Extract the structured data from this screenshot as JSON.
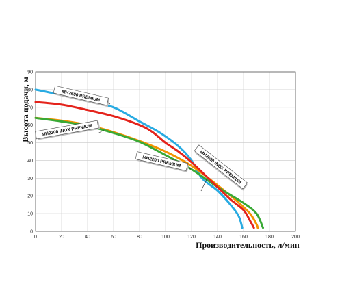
{
  "chart_data": {
    "type": "line",
    "title": "",
    "xlabel": "Производительность, л/мин",
    "ylabel": "Высота подачи, м",
    "xlim": [
      0,
      200
    ],
    "ylim": [
      0,
      90
    ],
    "xticks": [
      0,
      20,
      40,
      60,
      80,
      100,
      120,
      140,
      160,
      180,
      200
    ],
    "yticks": [
      0,
      10,
      20,
      30,
      40,
      50,
      60,
      70,
      80,
      90
    ],
    "grid": true,
    "legend": "none",
    "series": [
      {
        "name": "MH2600 PREMIUM",
        "color": "#29abe2",
        "points": [
          [
            0,
            80
          ],
          [
            20,
            77
          ],
          [
            40,
            73.5
          ],
          [
            60,
            70
          ],
          [
            80,
            62
          ],
          [
            95,
            56
          ],
          [
            110,
            48
          ],
          [
            120,
            40
          ],
          [
            128,
            30
          ],
          [
            140,
            23
          ],
          [
            150,
            15
          ],
          [
            156,
            9
          ],
          [
            158,
            5
          ],
          [
            159,
            2
          ]
        ]
      },
      {
        "name": "MH2600 INOX PREMIUM",
        "color": "#e4231b",
        "points": [
          [
            0,
            73
          ],
          [
            20,
            71.5
          ],
          [
            40,
            68.5
          ],
          [
            60,
            65
          ],
          [
            80,
            60
          ],
          [
            90,
            56
          ],
          [
            100,
            50
          ],
          [
            110,
            45
          ],
          [
            120,
            39
          ],
          [
            130,
            32
          ],
          [
            140,
            25
          ],
          [
            150,
            18
          ],
          [
            160,
            12
          ],
          [
            165,
            6
          ],
          [
            168,
            2
          ]
        ]
      },
      {
        "name": "MH2200 PREMIUM",
        "color": "#f39200",
        "points": [
          [
            0,
            64
          ],
          [
            20,
            62.5
          ],
          [
            40,
            60
          ],
          [
            60,
            56
          ],
          [
            80,
            51
          ],
          [
            100,
            45
          ],
          [
            120,
            37
          ],
          [
            140,
            26
          ],
          [
            155,
            17
          ],
          [
            165,
            10
          ],
          [
            170,
            4
          ],
          [
            171,
            2
          ]
        ]
      },
      {
        "name": "MH2200 INOX PREMIUM",
        "color": "#39a935",
        "points": [
          [
            0,
            64
          ],
          [
            20,
            62
          ],
          [
            40,
            59.5
          ],
          [
            60,
            55.5
          ],
          [
            80,
            50.5
          ],
          [
            100,
            43
          ],
          [
            120,
            35
          ],
          [
            140,
            25
          ],
          [
            160,
            16
          ],
          [
            170,
            10
          ],
          [
            175,
            2
          ]
        ]
      }
    ],
    "annotations": [
      {
        "text": "MH2600 PREMIUM",
        "series": "MH2600 PREMIUM"
      },
      {
        "text": "MH2200 INOX PREMIUM",
        "series": "MH2200 INOX PREMIUM"
      },
      {
        "text": "MH2200 PREMIUM",
        "series": "MH2200 PREMIUM"
      },
      {
        "text": "MH2600 INOX PREMIUM",
        "series": "MH2600 INOX PREMIUM"
      }
    ]
  }
}
